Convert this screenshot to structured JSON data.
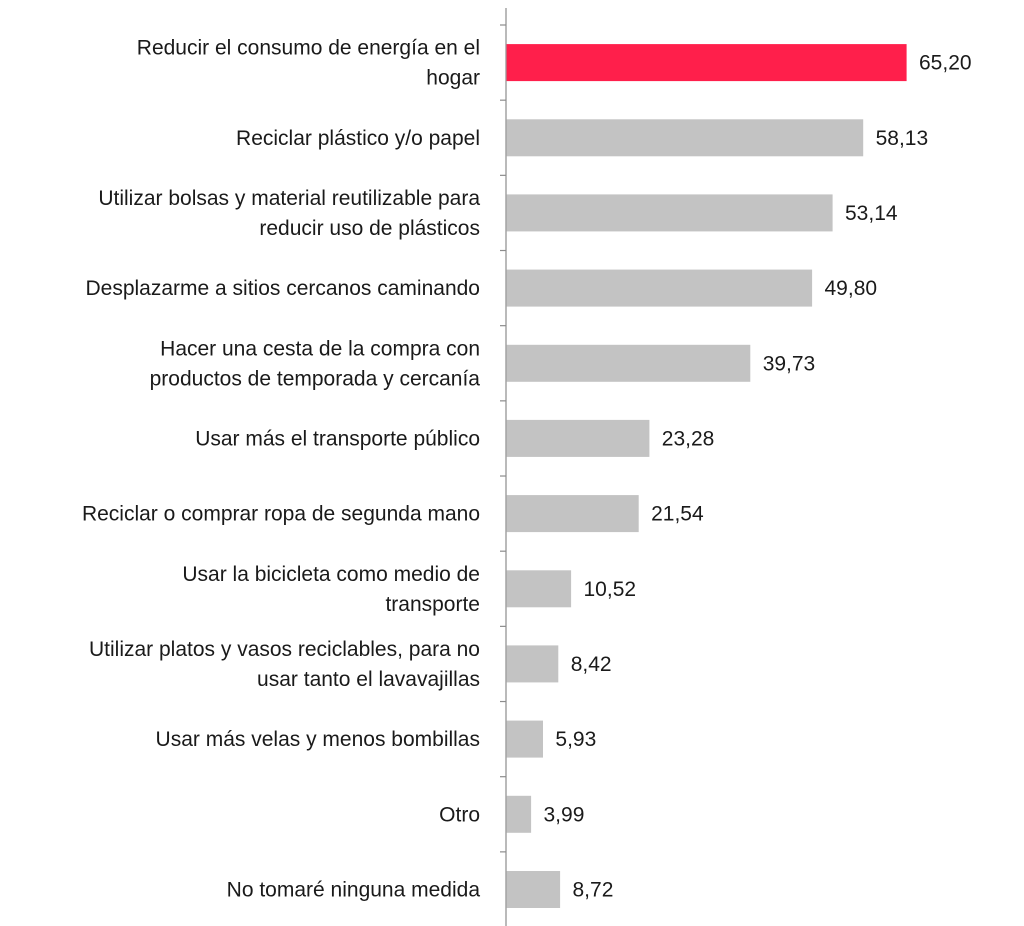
{
  "chart_data": {
    "type": "bar",
    "orientation": "horizontal",
    "categories": [
      [
        "Reducir el consumo de energía en el",
        "hogar"
      ],
      [
        "Reciclar plástico y/o papel"
      ],
      [
        "Utilizar bolsas y material reutilizable para",
        "reducir uso de plásticos"
      ],
      [
        "Desplazarme a sitios cercanos caminando"
      ],
      [
        "Hacer una cesta de la compra con",
        "productos de temporada y cercanía"
      ],
      [
        "Usar más el transporte público"
      ],
      [
        "Reciclar o comprar ropa de segunda mano"
      ],
      [
        "Usar la bicicleta como medio de",
        "transporte"
      ],
      [
        "Utilizar platos y vasos reciclables, para no",
        "usar tanto el lavavajillas"
      ],
      [
        "Usar más velas y menos bombillas"
      ],
      [
        "Otro"
      ],
      [
        "No tomaré ninguna medida"
      ]
    ],
    "values": [
      65.2,
      58.13,
      53.14,
      49.8,
      39.73,
      23.28,
      21.54,
      10.52,
      8.42,
      5.93,
      3.99,
      8.72
    ],
    "value_labels": [
      "65,20",
      "58,13",
      "53,14",
      "49,80",
      "39,73",
      "23,28",
      "21,54",
      "10,52",
      "8,42",
      "5,93",
      "3,99",
      "8,72"
    ],
    "highlight_index": 0,
    "xlim": [
      0,
      70
    ],
    "title": "",
    "xlabel": "",
    "ylabel": "",
    "grid": false,
    "legend": "none",
    "colors": {
      "highlight": "#ff1f4b",
      "bar": "#c3c3c3",
      "axis": "#8c8c8c",
      "text": "#1a1a1a"
    }
  }
}
